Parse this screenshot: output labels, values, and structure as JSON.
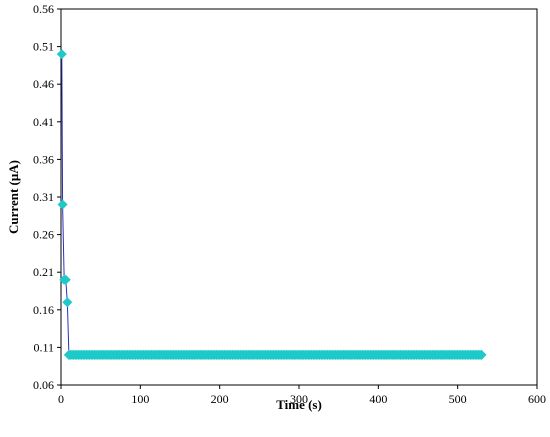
{
  "chart_data": {
    "type": "scatter",
    "title": "",
    "xlabel": "Time (s)",
    "ylabel": "Current (μA)",
    "xlim": [
      0,
      600
    ],
    "ylim": [
      0.06,
      0.56
    ],
    "x_ticks": [
      0,
      100,
      200,
      300,
      400,
      500,
      600
    ],
    "y_ticks": [
      0.06,
      0.11,
      0.16,
      0.21,
      0.26,
      0.31,
      0.36,
      0.41,
      0.46,
      0.51,
      0.56
    ],
    "x_tick_labels": [
      "0",
      "100",
      "200",
      "300",
      "400",
      "500",
      "600"
    ],
    "y_tick_labels": [
      "0.06",
      "0.11",
      "0.16",
      "0.21",
      "0.26",
      "0.31",
      "0.36",
      "0.41",
      "0.46",
      "0.51",
      "0.56"
    ],
    "grid": false,
    "legend": "none",
    "series": [
      {
        "line_color": "#2b2fb8",
        "marker_color": "#1fc9c9",
        "marker": "diamond",
        "points": [
          {
            "x": 1,
            "y": 0.5
          },
          {
            "x": 2,
            "y": 0.3
          },
          {
            "x": 4,
            "y": 0.2
          },
          {
            "x": 6,
            "y": 0.2
          },
          {
            "x": 8,
            "y": 0.17
          },
          {
            "x": 10,
            "y": 0.1
          },
          {
            "x": 530,
            "y": 0.1
          }
        ],
        "dense_segment": {
          "x_start": 10,
          "x_end": 530,
          "y": 0.1,
          "step": 2
        }
      }
    ]
  }
}
